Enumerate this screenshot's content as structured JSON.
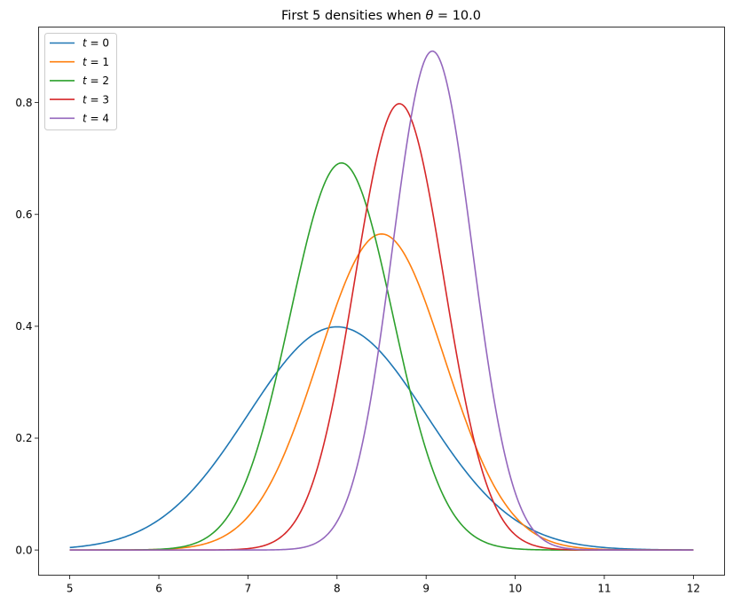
{
  "chart_data": {
    "type": "line",
    "title": "First 5 densities when θ = 10.0",
    "title_parts": {
      "prefix": "First 5 densities when ",
      "symbol": "θ",
      "suffix": " = 10.0"
    },
    "xlabel": "",
    "ylabel": "",
    "xlim": [
      4.65,
      12.35
    ],
    "ylim": [
      -0.045,
      0.935
    ],
    "xticks": [
      5,
      6,
      7,
      8,
      9,
      10,
      11,
      12
    ],
    "xtick_labels": [
      "5",
      "6",
      "7",
      "8",
      "9",
      "10",
      "11",
      "12"
    ],
    "yticks": [
      0.0,
      0.2,
      0.4,
      0.6,
      0.8
    ],
    "ytick_labels": [
      "0.0",
      "0.2",
      "0.4",
      "0.6",
      "0.8"
    ],
    "grid": false,
    "legend_position": "top-left",
    "x_range": [
      5,
      12
    ],
    "series": [
      {
        "name": "t = 0",
        "legend_var": "t",
        "legend_value": "0",
        "color": "#1f77b4",
        "peak_x": 8.0,
        "peak_y": 0.399,
        "sd": 1.0
      },
      {
        "name": "t = 1",
        "legend_var": "t",
        "legend_value": "1",
        "color": "#ff7f0e",
        "peak_x": 8.5,
        "peak_y": 0.565,
        "sd": 0.707
      },
      {
        "name": "t = 2",
        "legend_var": "t",
        "legend_value": "2",
        "color": "#2ca02c",
        "peak_x": 8.05,
        "peak_y": 0.692,
        "sd": 0.577
      },
      {
        "name": "t = 3",
        "legend_var": "t",
        "legend_value": "3",
        "color": "#d62728",
        "peak_x": 8.7,
        "peak_y": 0.798,
        "sd": 0.5
      },
      {
        "name": "t = 4",
        "legend_var": "t",
        "legend_value": "4",
        "color": "#9467bd",
        "peak_x": 9.07,
        "peak_y": 0.892,
        "sd": 0.447
      }
    ]
  }
}
